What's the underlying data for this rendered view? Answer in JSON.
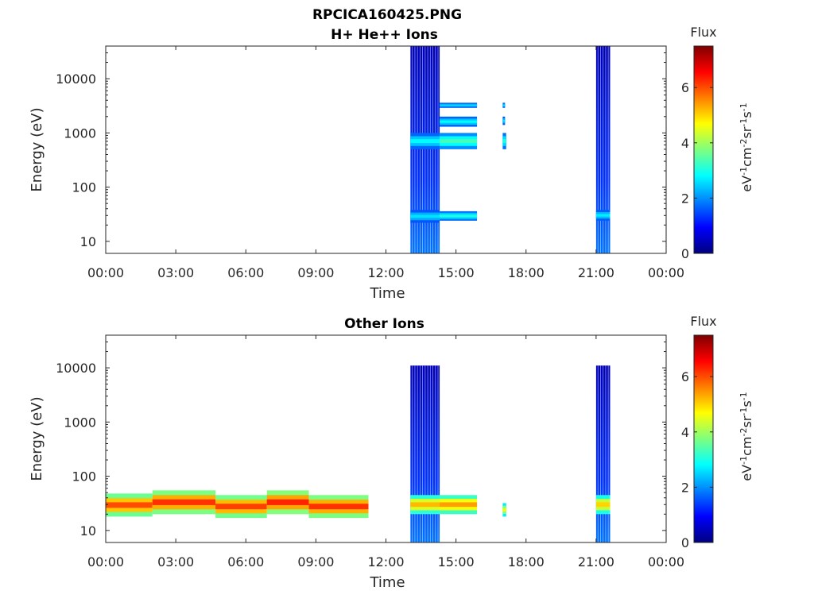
{
  "figure": {
    "title_line1": "RPCICA160425.PNG"
  },
  "colorscale": {
    "stops": [
      "#00007f",
      "#0000ff",
      "#007fff",
      "#00ffff",
      "#7fff7f",
      "#ffff00",
      "#ff7f00",
      "#ff0000",
      "#7f0000"
    ]
  },
  "chart_data": [
    {
      "type": "heatmap",
      "title": "H+ He++ Ions",
      "xlabel": "Time",
      "ylabel": "Energy (eV)",
      "x_ticks": [
        "00:00",
        "03:00",
        "06:00",
        "09:00",
        "12:00",
        "15:00",
        "18:00",
        "21:00",
        "00:00"
      ],
      "x_range_hours": [
        0,
        24
      ],
      "y_scale": "log",
      "y_ticks": [
        "10",
        "100",
        "1000",
        "10000"
      ],
      "y_range_eV": [
        6,
        40000
      ],
      "colorbar": {
        "title": "Flux",
        "unit_label": "eV-1cm-2sr-1s-1",
        "ticks": [
          "0",
          "2",
          "4",
          "6"
        ],
        "range": [
          0,
          7.5
        ]
      },
      "blocks": [
        {
          "t0": 13.05,
          "t1": 14.3,
          "e0": 6,
          "e1": 40000,
          "flux_low": 1.8,
          "flux_high": 0.4
        },
        {
          "t0": 21.0,
          "t1": 21.6,
          "e0": 6,
          "e1": 40000,
          "flux_low": 1.8,
          "flux_high": 0.4
        }
      ],
      "bands": [
        {
          "t0": 13.05,
          "t1": 14.3,
          "e0": 22,
          "e1": 38,
          "flux": 2.6
        },
        {
          "t0": 14.3,
          "t1": 15.9,
          "e0": 24,
          "e1": 36,
          "flux": 3.0
        },
        {
          "t0": 13.05,
          "t1": 14.3,
          "e0": 500,
          "e1": 1000,
          "flux": 2.8
        },
        {
          "t0": 14.3,
          "t1": 15.9,
          "e0": 500,
          "e1": 1000,
          "flux": 3.3
        },
        {
          "t0": 14.3,
          "t1": 15.9,
          "e0": 1300,
          "e1": 2000,
          "flux": 2.8
        },
        {
          "t0": 14.3,
          "t1": 15.9,
          "e0": 2900,
          "e1": 3600,
          "flux": 2.6
        },
        {
          "t0": 17.0,
          "t1": 17.15,
          "e0": 500,
          "e1": 1000,
          "flux": 3.0
        },
        {
          "t0": 17.0,
          "t1": 17.1,
          "e0": 1400,
          "e1": 2000,
          "flux": 2.6
        },
        {
          "t0": 17.0,
          "t1": 17.1,
          "e0": 2900,
          "e1": 3600,
          "flux": 2.6
        },
        {
          "t0": 21.0,
          "t1": 21.6,
          "e0": 24,
          "e1": 38,
          "flux": 2.7
        }
      ]
    },
    {
      "type": "heatmap",
      "title": "Other Ions",
      "xlabel": "Time",
      "ylabel": "Energy (eV)",
      "x_ticks": [
        "00:00",
        "03:00",
        "06:00",
        "09:00",
        "12:00",
        "15:00",
        "18:00",
        "21:00",
        "00:00"
      ],
      "x_range_hours": [
        0,
        24
      ],
      "y_scale": "log",
      "y_ticks": [
        "10",
        "100",
        "1000",
        "10000"
      ],
      "y_range_eV": [
        6,
        40000
      ],
      "colorbar": {
        "title": "Flux",
        "unit_label": "eV-1cm-2sr-1s-1",
        "ticks": [
          "0",
          "2",
          "4",
          "6"
        ],
        "range": [
          0,
          7.5
        ]
      },
      "blocks": [
        {
          "t0": 13.05,
          "t1": 14.3,
          "e0": 6,
          "e1": 11000,
          "flux_low": 1.8,
          "flux_high": 0.4
        },
        {
          "t0": 21.0,
          "t1": 21.6,
          "e0": 6,
          "e1": 11000,
          "flux_low": 1.8,
          "flux_high": 0.4
        }
      ],
      "bands": [
        {
          "t0": 0.0,
          "t1": 2.0,
          "e0": 18,
          "e1": 48,
          "flux": 6.0
        },
        {
          "t0": 2.0,
          "t1": 4.7,
          "e0": 20,
          "e1": 55,
          "flux": 6.2
        },
        {
          "t0": 4.7,
          "t1": 6.9,
          "e0": 17,
          "e1": 45,
          "flux": 6.1
        },
        {
          "t0": 6.9,
          "t1": 8.7,
          "e0": 20,
          "e1": 55,
          "flux": 6.3
        },
        {
          "t0": 8.7,
          "t1": 11.25,
          "e0": 17,
          "e1": 45,
          "flux": 6.2
        },
        {
          "t0": 13.05,
          "t1": 14.3,
          "e0": 20,
          "e1": 45,
          "flux": 5.2
        },
        {
          "t0": 14.3,
          "t1": 15.9,
          "e0": 20,
          "e1": 45,
          "flux": 5.4
        },
        {
          "t0": 17.0,
          "t1": 17.15,
          "e0": 18,
          "e1": 32,
          "flux": 4.5
        },
        {
          "t0": 21.0,
          "t1": 21.6,
          "e0": 20,
          "e1": 45,
          "flux": 5.0
        }
      ]
    }
  ]
}
